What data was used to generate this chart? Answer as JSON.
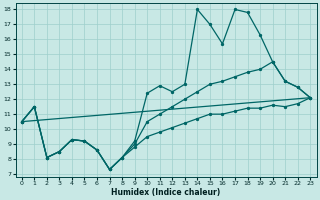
{
  "bg_color": "#c8e8e5",
  "grid_color": "#9ecfcc",
  "line_color": "#006666",
  "xlabel": "Humidex (Indice chaleur)",
  "xlim": [
    -0.5,
    23.5
  ],
  "ylim": [
    6.8,
    18.4
  ],
  "xticks": [
    0,
    1,
    2,
    3,
    4,
    5,
    6,
    7,
    8,
    9,
    10,
    11,
    12,
    13,
    14,
    15,
    16,
    17,
    18,
    19,
    20,
    21,
    22,
    23
  ],
  "yticks": [
    7,
    8,
    9,
    10,
    11,
    12,
    13,
    14,
    15,
    16,
    17,
    18
  ],
  "s1x": [
    0,
    1,
    2,
    3,
    4,
    5,
    6,
    7,
    8,
    9,
    10,
    11,
    12,
    13,
    14,
    15,
    16,
    17,
    18,
    19,
    20,
    21,
    22,
    23
  ],
  "s1y": [
    10.5,
    11.5,
    8.1,
    8.5,
    9.3,
    9.2,
    8.6,
    7.3,
    8.1,
    9.2,
    12.4,
    12.9,
    12.5,
    13.0,
    18.0,
    17.0,
    15.7,
    18.0,
    17.8,
    16.3,
    14.5,
    13.2,
    12.8,
    12.1
  ],
  "s2x": [
    0,
    1,
    2,
    3,
    4,
    5,
    6,
    7,
    8,
    9,
    10,
    11,
    12,
    13,
    14,
    15,
    16,
    17,
    18,
    19,
    20,
    21,
    22,
    23
  ],
  "s2y": [
    10.5,
    11.5,
    8.1,
    8.5,
    9.3,
    9.2,
    8.6,
    7.3,
    8.1,
    9.0,
    10.5,
    11.0,
    11.5,
    12.0,
    12.5,
    13.0,
    13.2,
    13.5,
    13.8,
    14.0,
    14.5,
    13.2,
    12.8,
    12.1
  ],
  "s3x": [
    0,
    1,
    2,
    3,
    4,
    5,
    6,
    7,
    8,
    9,
    10,
    11,
    12,
    13,
    14,
    15,
    16,
    17,
    18,
    19,
    20,
    21,
    22,
    23
  ],
  "s3y": [
    10.5,
    11.5,
    8.1,
    8.5,
    9.3,
    9.2,
    8.6,
    7.3,
    8.1,
    8.8,
    9.5,
    9.8,
    10.1,
    10.4,
    10.7,
    11.0,
    11.0,
    11.2,
    11.4,
    11.4,
    11.6,
    11.5,
    11.7,
    12.1
  ],
  "s4x": [
    0,
    23
  ],
  "s4y": [
    10.5,
    12.1
  ]
}
